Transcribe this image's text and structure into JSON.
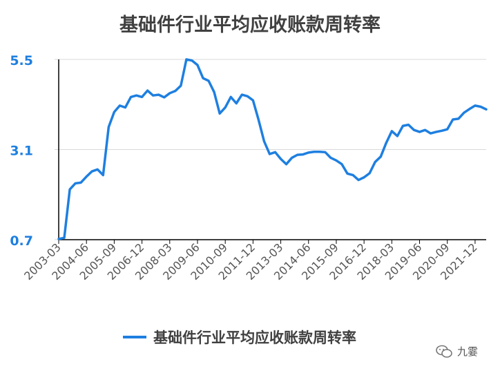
{
  "chart_data": {
    "type": "line",
    "title": "基础件行业平均应收账款周转率",
    "xlabel": "",
    "ylabel": "",
    "ylim": [
      0.7,
      5.5
    ],
    "yticks": [
      "0.7",
      "3.1",
      "5.5"
    ],
    "xticks": [
      "2003-03",
      "2004-06",
      "2005-09",
      "2006-12",
      "2008-03",
      "2009-06",
      "2010-09",
      "2011-12",
      "2013-03",
      "2014-06",
      "2015-09",
      "2016-12",
      "2018-03",
      "2019-06",
      "2020-09",
      "2021-12"
    ],
    "x": [
      "2003-03",
      "2003-06",
      "2003-09",
      "2003-12",
      "2004-03",
      "2004-06",
      "2004-09",
      "2004-12",
      "2005-03",
      "2005-06",
      "2005-09",
      "2005-12",
      "2006-03",
      "2006-06",
      "2006-09",
      "2006-12",
      "2007-03",
      "2007-06",
      "2007-09",
      "2007-12",
      "2008-03",
      "2008-06",
      "2008-09",
      "2008-12",
      "2009-03",
      "2009-06",
      "2009-09",
      "2009-12",
      "2010-03",
      "2010-06",
      "2010-09",
      "2010-12",
      "2011-03",
      "2011-06",
      "2011-09",
      "2011-12",
      "2012-03",
      "2012-06",
      "2012-09",
      "2012-12",
      "2013-03",
      "2013-06",
      "2013-09",
      "2013-12",
      "2014-03",
      "2014-06",
      "2014-09",
      "2014-12",
      "2015-03",
      "2015-06",
      "2015-09",
      "2015-12",
      "2016-03",
      "2016-06",
      "2016-09",
      "2016-12",
      "2017-03",
      "2017-06",
      "2017-09",
      "2017-12",
      "2018-03",
      "2018-06",
      "2018-09",
      "2018-12",
      "2019-03",
      "2019-06",
      "2019-09",
      "2019-12",
      "2020-03",
      "2020-06",
      "2020-09",
      "2020-12",
      "2021-03",
      "2021-06",
      "2021-09",
      "2021-12",
      "2022-03",
      "2022-06"
    ],
    "grid": true,
    "legend_position": "bottom",
    "series": [
      {
        "name": "基础件行业平均应收账款周转率",
        "color": "#1e7fe0",
        "values": [
          0.72,
          0.75,
          2.04,
          2.2,
          2.22,
          2.38,
          2.52,
          2.57,
          2.42,
          3.7,
          4.1,
          4.27,
          4.22,
          4.5,
          4.54,
          4.5,
          4.67,
          4.54,
          4.56,
          4.49,
          4.6,
          4.66,
          4.8,
          5.5,
          5.47,
          5.35,
          5.0,
          4.93,
          4.63,
          4.06,
          4.22,
          4.5,
          4.33,
          4.56,
          4.52,
          4.41,
          3.89,
          3.32,
          2.98,
          3.03,
          2.85,
          2.71,
          2.88,
          2.96,
          2.97,
          3.02,
          3.04,
          3.04,
          3.03,
          2.88,
          2.81,
          2.71,
          2.46,
          2.42,
          2.29,
          2.36,
          2.47,
          2.77,
          2.91,
          3.28,
          3.59,
          3.46,
          3.73,
          3.76,
          3.62,
          3.57,
          3.62,
          3.53,
          3.57,
          3.6,
          3.64,
          3.9,
          3.92,
          4.08,
          4.18,
          4.27,
          4.24,
          4.17
        ]
      }
    ]
  },
  "legend": {
    "label": "基础件行业平均应收账款周转率"
  },
  "watermark": {
    "text": "九霎"
  }
}
